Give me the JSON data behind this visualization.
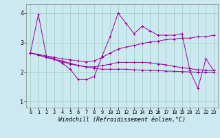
{
  "xlabel": "Windchill (Refroidissement éolien,°C)",
  "background_color": "#cce8f0",
  "grid_color": "#99ccbb",
  "line_color": "#990099",
  "xlim": [
    -0.5,
    23.5
  ],
  "ylim": [
    0.8,
    4.3
  ],
  "yticks": [
    1,
    2,
    3,
    4
  ],
  "xticks": [
    0,
    1,
    2,
    3,
    4,
    5,
    6,
    7,
    8,
    9,
    10,
    11,
    12,
    13,
    14,
    15,
    16,
    17,
    18,
    19,
    20,
    21,
    22,
    23
  ],
  "series": [
    [
      2.65,
      3.95,
      2.55,
      2.45,
      2.3,
      2.1,
      1.75,
      1.75,
      1.85,
      2.55,
      3.2,
      4.0,
      3.65,
      3.3,
      3.55,
      3.4,
      3.25,
      3.25,
      3.25,
      3.3,
      2.05,
      1.45,
      2.45,
      2.05
    ],
    [
      2.65,
      2.6,
      2.55,
      2.5,
      2.45,
      2.42,
      2.38,
      2.35,
      2.38,
      2.5,
      2.65,
      2.78,
      2.85,
      2.9,
      2.97,
      3.02,
      3.05,
      3.1,
      3.12,
      3.15,
      3.15,
      3.2,
      3.2,
      3.25
    ],
    [
      2.65,
      2.58,
      2.5,
      2.43,
      2.35,
      2.28,
      2.22,
      2.18,
      2.18,
      2.22,
      2.27,
      2.33,
      2.33,
      2.33,
      2.33,
      2.32,
      2.28,
      2.25,
      2.2,
      2.15,
      2.12,
      2.08,
      2.07,
      2.05
    ],
    [
      2.65,
      2.58,
      2.5,
      2.43,
      2.38,
      2.3,
      2.23,
      2.18,
      2.13,
      2.1,
      2.1,
      2.1,
      2.1,
      2.08,
      2.07,
      2.06,
      2.05,
      2.04,
      2.03,
      2.02,
      2.01,
      2.0,
      2.0,
      2.0
    ]
  ]
}
